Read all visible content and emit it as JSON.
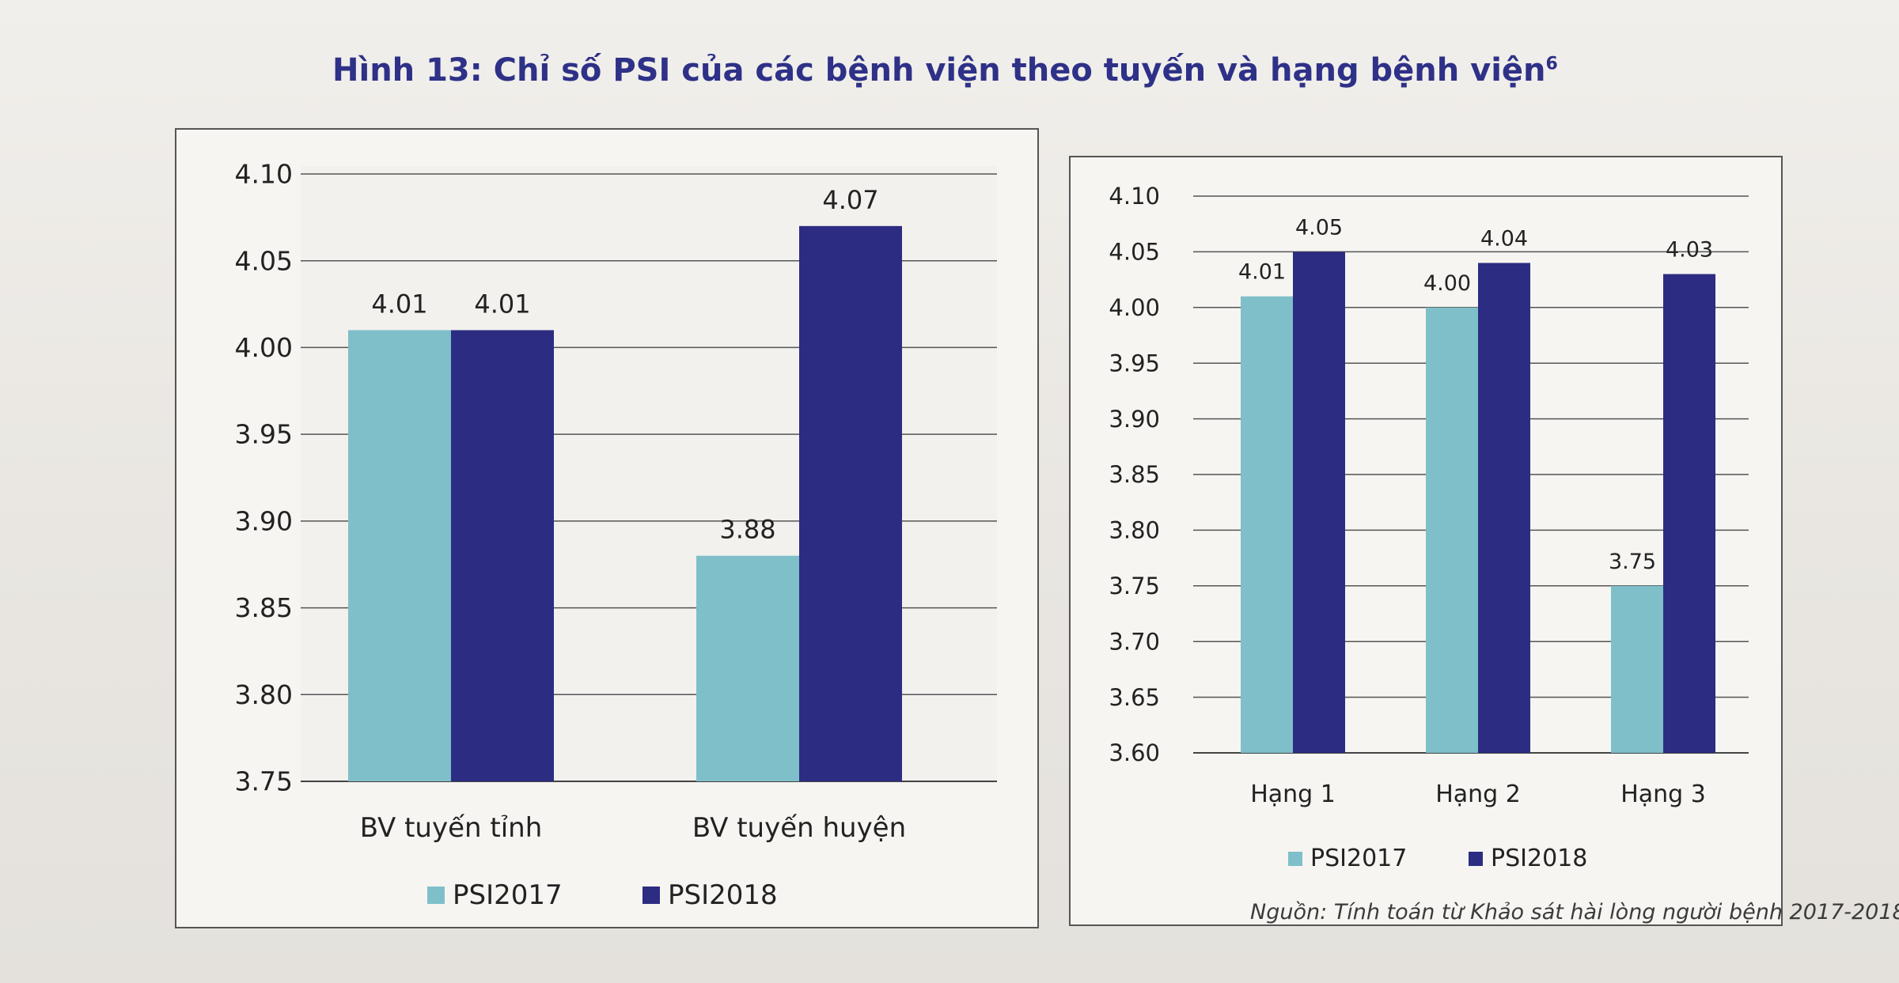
{
  "figure": {
    "title": "Hình 13: Chỉ số PSI của các bệnh viện theo tuyến và hạng bệnh viện",
    "title_sup": "6",
    "source": "Nguồn: Tính toán từ Khảo sát hài lòng người bệnh 2017-2018"
  },
  "colors": {
    "psi2017": "#7fbfc9",
    "psi2018": "#2c2c82",
    "title": "#2e3187"
  },
  "chart_data": [
    {
      "type": "bar",
      "title": "",
      "categories": [
        "BV tuyến tỉnh",
        "BV tuyến huyện"
      ],
      "series": [
        {
          "name": "PSI2017",
          "values": [
            4.01,
            3.88
          ]
        },
        {
          "name": "PSI2018",
          "values": [
            4.01,
            4.07
          ]
        }
      ],
      "ylim": [
        3.75,
        4.1
      ],
      "yticks": [
        "3.75",
        "3.80",
        "3.85",
        "3.90",
        "3.95",
        "4.00",
        "4.05",
        "4.10"
      ],
      "labels": [
        [
          "4.01",
          "3.88"
        ],
        [
          "4.01",
          "4.07"
        ]
      ],
      "grid": true,
      "legend": "bottom",
      "xlabel": "",
      "ylabel": ""
    },
    {
      "type": "bar",
      "title": "",
      "categories": [
        "Hạng 1",
        "Hạng 2",
        "Hạng 3"
      ],
      "series": [
        {
          "name": "PSI2017",
          "values": [
            4.01,
            4.0,
            3.75
          ]
        },
        {
          "name": "PSI2018",
          "values": [
            4.05,
            4.04,
            4.03
          ]
        }
      ],
      "ylim": [
        3.6,
        4.1
      ],
      "yticks": [
        "3.60",
        "3.65",
        "3.70",
        "3.75",
        "3.80",
        "3.85",
        "3.90",
        "3.95",
        "4.00",
        "4.05",
        "4.10"
      ],
      "labels": [
        [
          "4.01",
          "4.00",
          "3.75"
        ],
        [
          "4.05",
          "4.04",
          "4.03"
        ]
      ],
      "grid": true,
      "legend": "bottom",
      "xlabel": "",
      "ylabel": ""
    }
  ]
}
